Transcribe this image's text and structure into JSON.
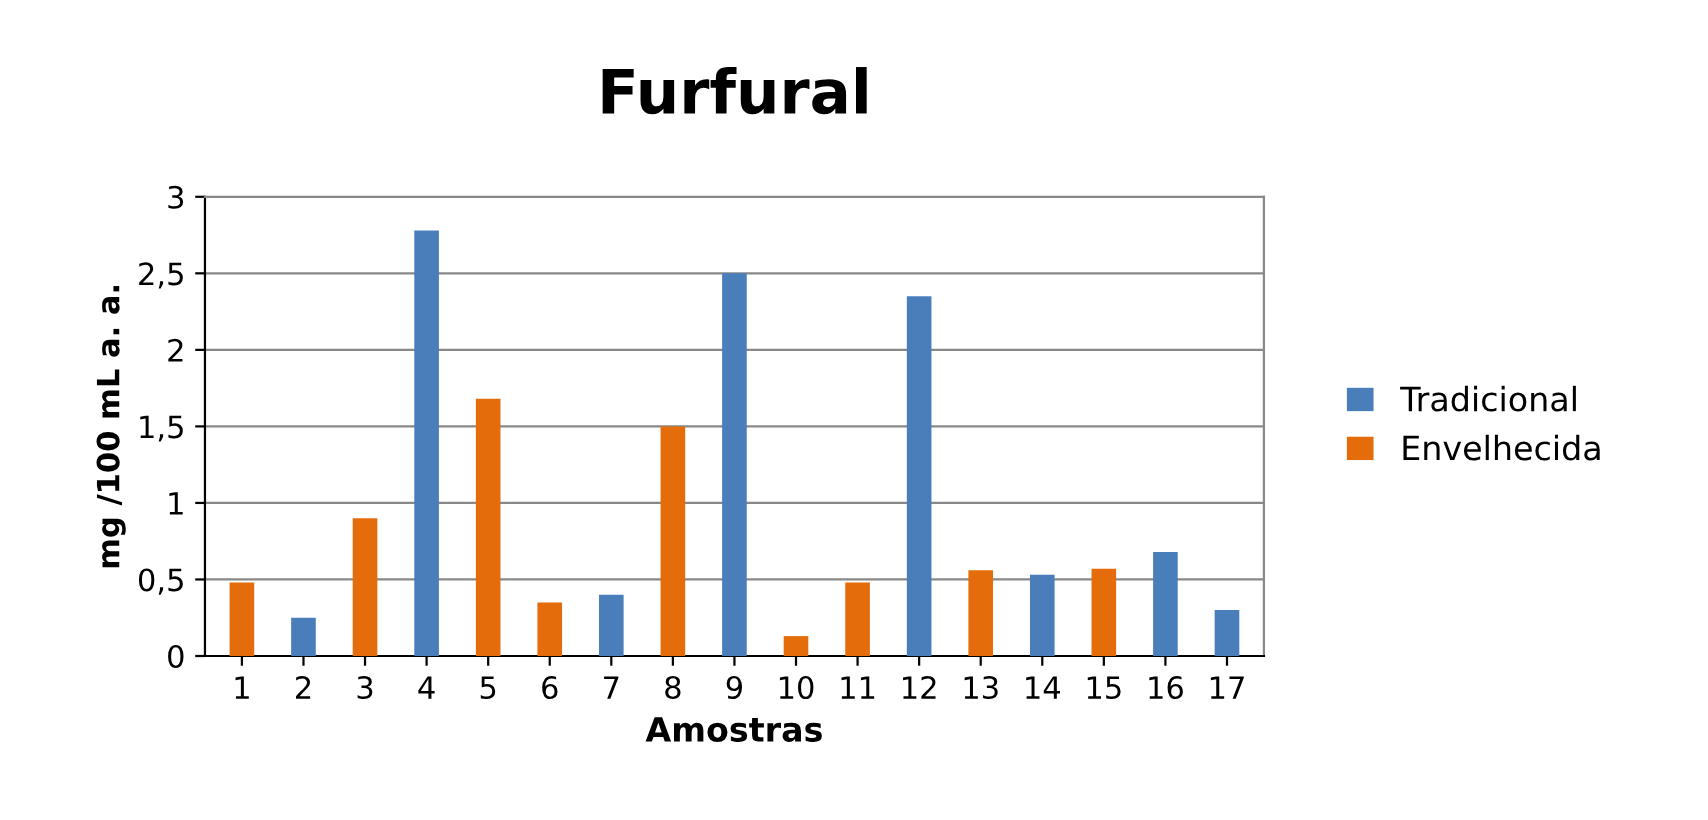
{
  "chart_data": {
    "type": "bar",
    "title": "Furfural",
    "xlabel": "Amostras",
    "ylabel": "mg /100 mL a. a.",
    "categories": [
      "1",
      "2",
      "3",
      "4",
      "5",
      "6",
      "7",
      "8",
      "9",
      "10",
      "11",
      "12",
      "13",
      "14",
      "15",
      "16",
      "17"
    ],
    "series": [
      {
        "name": "Tradicional",
        "color": "#4a7ebb",
        "values": [
          null,
          0.25,
          null,
          2.78,
          null,
          null,
          0.4,
          null,
          2.5,
          null,
          null,
          2.35,
          null,
          0.53,
          null,
          0.68,
          0.3
        ]
      },
      {
        "name": "Envelhecida",
        "color": "#e46c0a",
        "values": [
          0.48,
          null,
          0.9,
          null,
          1.68,
          0.35,
          null,
          1.5,
          null,
          0.13,
          0.48,
          null,
          0.56,
          null,
          0.57,
          null,
          null
        ]
      }
    ],
    "ylim": [
      0,
      3
    ],
    "yticks": [
      0,
      {
        "value": 0.5,
        "label": "0,5"
      },
      1,
      {
        "value": 1.5,
        "label": "1,5"
      },
      2,
      {
        "value": 2.5,
        "label": "2,5"
      },
      3
    ],
    "grid": "y",
    "legend": "right"
  }
}
